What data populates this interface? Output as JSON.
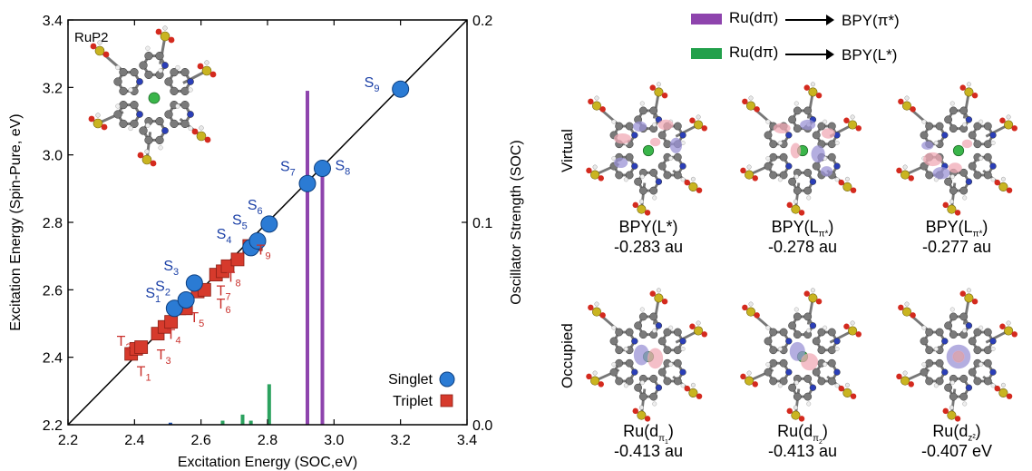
{
  "chart_data": {
    "type": "scatter",
    "panel_label": "RuP2",
    "xlabel": "Excitation Energy (SOC,eV)",
    "ylabel": "Excitation Energy (Spin-Pure, eV)",
    "y2label": "Oscillator Strength (SOC)",
    "xlim": [
      2.2,
      3.4
    ],
    "ylim": [
      2.2,
      3.4
    ],
    "y2lim": [
      0.0,
      0.2
    ],
    "xticks": [
      "2.2",
      "2.4",
      "2.6",
      "2.8",
      "3.0",
      "3.2",
      "3.4"
    ],
    "yticks": [
      "2.2",
      "2.4",
      "2.6",
      "2.8",
      "3.0",
      "3.2",
      "3.4"
    ],
    "y2ticks": [
      "0.0",
      "0.1",
      "0.2"
    ],
    "diagonal_line": true,
    "singlets": [
      {
        "label": "S1",
        "x": 2.52,
        "y": 2.545
      },
      {
        "label": "S2",
        "x": 2.555,
        "y": 2.57
      },
      {
        "label": "S3",
        "x": 2.58,
        "y": 2.62
      },
      {
        "label": "S4",
        "x": 2.75,
        "y": 2.725
      },
      {
        "label": "S5",
        "x": 2.77,
        "y": 2.745
      },
      {
        "label": "S6",
        "x": 2.805,
        "y": 2.795
      },
      {
        "label": "S7",
        "x": 2.92,
        "y": 2.915
      },
      {
        "label": "S8",
        "x": 2.965,
        "y": 2.96
      },
      {
        "label": "S9",
        "x": 3.2,
        "y": 3.195
      }
    ],
    "triplets": [
      {
        "x": 2.39,
        "y": 2.41
      },
      {
        "x": 2.405,
        "y": 2.425
      },
      {
        "x": 2.42,
        "y": 2.43
      },
      {
        "x": 2.47,
        "y": 2.47
      },
      {
        "x": 2.49,
        "y": 2.49
      },
      {
        "x": 2.51,
        "y": 2.505
      },
      {
        "x": 2.535,
        "y": 2.545
      },
      {
        "x": 2.555,
        "y": 2.545
      },
      {
        "x": 2.59,
        "y": 2.595
      },
      {
        "x": 2.61,
        "y": 2.6
      },
      {
        "x": 2.645,
        "y": 2.645
      },
      {
        "x": 2.665,
        "y": 2.655
      },
      {
        "x": 2.68,
        "y": 2.67
      },
      {
        "x": 2.71,
        "y": 2.69
      },
      {
        "x": 2.745,
        "y": 2.73
      },
      {
        "x": 2.765,
        "y": 2.735
      }
    ],
    "triplet_labels": [
      {
        "label": "T1",
        "x": 2.45,
        "y": 2.36
      },
      {
        "label": "T2",
        "x": 2.39,
        "y": 2.45
      },
      {
        "label": "T3",
        "x": 2.51,
        "y": 2.41
      },
      {
        "label": "T4",
        "x": 2.54,
        "y": 2.47
      },
      {
        "label": "T5",
        "x": 2.61,
        "y": 2.52
      },
      {
        "label": "T6",
        "x": 2.69,
        "y": 2.56
      },
      {
        "label": "T7",
        "x": 2.69,
        "y": 2.6
      },
      {
        "label": "T8",
        "x": 2.72,
        "y": 2.64
      },
      {
        "label": "T9",
        "x": 2.81,
        "y": 2.72
      }
    ],
    "oscillator_bars": [
      {
        "x": 2.508,
        "f": 0.001,
        "color": "#1a4fb0"
      },
      {
        "x": 2.665,
        "f": 0.002,
        "color": "#2ca25f"
      },
      {
        "x": 2.725,
        "f": 0.005,
        "color": "#2ca25f"
      },
      {
        "x": 2.75,
        "f": 0.002,
        "color": "#2ca25f"
      },
      {
        "x": 2.805,
        "f": 0.02,
        "color": "#2ca25f"
      },
      {
        "x": 2.92,
        "f": 0.165,
        "color": "#8e44ad"
      },
      {
        "x": 2.965,
        "f": 0.13,
        "color": "#8e44ad"
      }
    ],
    "legend": [
      {
        "name": "Singlet",
        "marker": "circle",
        "color": "#2b7bd4"
      },
      {
        "name": "Triplet",
        "marker": "square",
        "color": "#d63a2c"
      }
    ],
    "legend_position": "bottom-right"
  },
  "right_panel": {
    "legend": [
      {
        "from": "Ru(dπ)",
        "to": "BPY(π*)",
        "color": "#8e44ad"
      },
      {
        "from": "Ru(dπ)",
        "to": "BPY(L*)",
        "color": "#22a04b"
      }
    ],
    "rows": [
      "Virtual",
      "Occupied"
    ],
    "virtual": [
      {
        "name": "BPY(L*)",
        "energy": "-0.283 au"
      },
      {
        "name": "BPY(Lπ*)",
        "energy": "-0.278 au"
      },
      {
        "name": "BPY(Lπ*)",
        "energy": "-0.277 au"
      }
    ],
    "occupied": [
      {
        "name": "Ru(dπ1)",
        "energy": "-0.413 au"
      },
      {
        "name": "Ru(dπ2)",
        "energy": "-0.413 au"
      },
      {
        "name": "Ru(dz²)",
        "energy": "-0.407 eV"
      }
    ]
  }
}
